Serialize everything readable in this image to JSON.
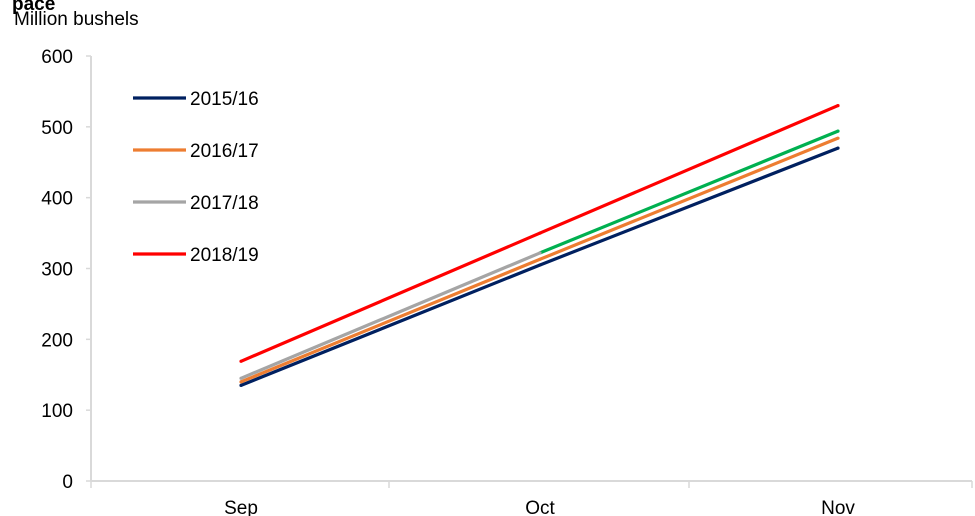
{
  "chart_data": {
    "type": "line",
    "title": "pace",
    "ylabel": "Million bushels",
    "xlabel": "",
    "categories": [
      "Sep",
      "Oct",
      "Nov"
    ],
    "ylim": [
      0,
      600
    ],
    "yticks": [
      0,
      100,
      200,
      300,
      400,
      500,
      600
    ],
    "grid": false,
    "legend_position": "top-left",
    "series": [
      {
        "name": "2015/16",
        "color": "#002060",
        "values": [
          135,
          305,
          470
        ]
      },
      {
        "name": "2016/17",
        "color": "#ED7D31",
        "values": [
          140,
          313,
          484
        ]
      },
      {
        "name": "2017/18",
        "color": "#A5A5A5",
        "values": [
          145,
          322,
          null
        ]
      },
      {
        "name": "2018/19",
        "color": "#FF0000",
        "values": [
          169,
          350,
          530
        ]
      },
      {
        "color": "#00B050",
        "values": [
          null,
          322,
          494
        ]
      }
    ]
  }
}
